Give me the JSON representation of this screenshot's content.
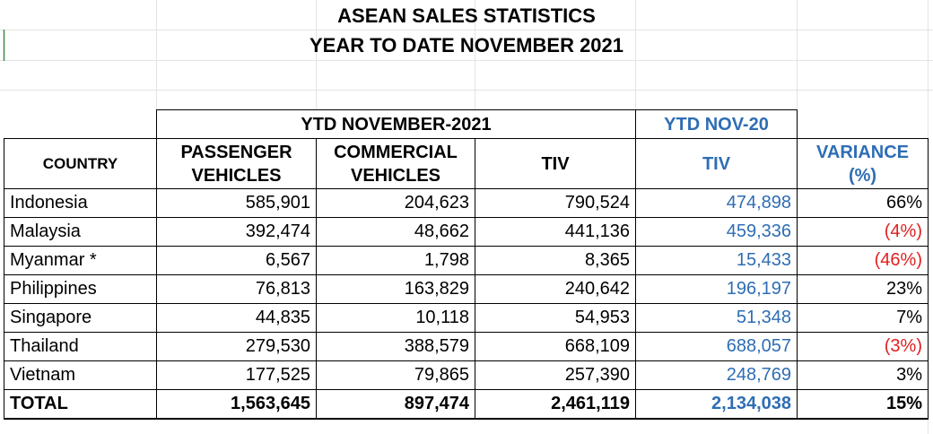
{
  "title_line1": "ASEAN SALES STATISTICS",
  "title_line2": "YEAR TO DATE NOVEMBER 2021",
  "header": {
    "group_current": "YTD NOVEMBER-2021",
    "group_previous": "YTD NOV-20",
    "country": "COUNTRY",
    "passenger_line1": "PASSENGER",
    "passenger_line2": "VEHICLES",
    "commercial_line1": "COMMERCIAL",
    "commercial_line2": "VEHICLES",
    "tiv": "TIV",
    "tiv_prev": "TIV",
    "variance_line1": "VARIANCE",
    "variance_line2": "(%)"
  },
  "colors": {
    "blue_text": "#2e6db4",
    "negative_text": "#e02020"
  },
  "rows": [
    {
      "country": "Indonesia",
      "passenger": "585,901",
      "commercial": "204,623",
      "tiv": "790,524",
      "tiv_prev": "474,898",
      "variance": "66%",
      "negative": false
    },
    {
      "country": "Malaysia",
      "passenger": "392,474",
      "commercial": "48,662",
      "tiv": "441,136",
      "tiv_prev": "459,336",
      "variance": "(4%)",
      "negative": true
    },
    {
      "country": "Myanmar *",
      "passenger": "6,567",
      "commercial": "1,798",
      "tiv": "8,365",
      "tiv_prev": "15,433",
      "variance": "(46%)",
      "negative": true
    },
    {
      "country": "Philippines",
      "passenger": "76,813",
      "commercial": "163,829",
      "tiv": "240,642",
      "tiv_prev": "196,197",
      "variance": "23%",
      "negative": false
    },
    {
      "country": "Singapore",
      "passenger": "44,835",
      "commercial": "10,118",
      "tiv": "54,953",
      "tiv_prev": "51,348",
      "variance": "7%",
      "negative": false
    },
    {
      "country": "Thailand",
      "passenger": "279,530",
      "commercial": "388,579",
      "tiv": "668,109",
      "tiv_prev": "688,057",
      "variance": "(3%)",
      "negative": true
    },
    {
      "country": "Vietnam",
      "passenger": "177,525",
      "commercial": "79,865",
      "tiv": "257,390",
      "tiv_prev": "248,769",
      "variance": "3%",
      "negative": false
    }
  ],
  "total": {
    "country": "TOTAL",
    "passenger": "1,563,645",
    "commercial": "897,474",
    "tiv": "2,461,119",
    "tiv_prev": "2,134,038",
    "variance": "15%"
  }
}
